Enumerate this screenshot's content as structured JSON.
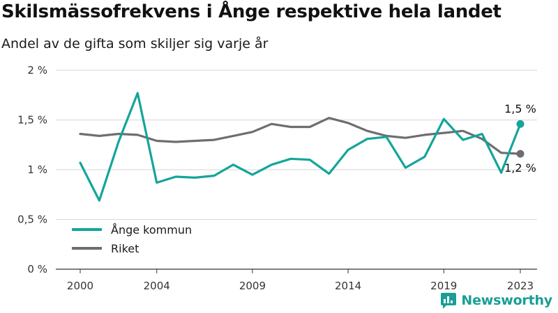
{
  "header": {
    "title": "Skilsmässofrekvens i Ånge respektive hela landet",
    "subtitle": "Andel av de gifta som skiljer sig varje år"
  },
  "brand": {
    "name": "Newsworthy",
    "logo_icon": "bar-chart-icon",
    "color": "#1a9e95"
  },
  "chart_data": {
    "type": "line",
    "x": [
      2000,
      2001,
      2002,
      2003,
      2004,
      2005,
      2006,
      2007,
      2008,
      2009,
      2010,
      2011,
      2012,
      2013,
      2014,
      2015,
      2016,
      2017,
      2018,
      2019,
      2020,
      2021,
      2022,
      2023
    ],
    "series": [
      {
        "name": "Ånge kommun",
        "color": "#13a59a",
        "values": [
          1.07,
          0.69,
          1.28,
          1.77,
          0.87,
          0.93,
          0.92,
          0.94,
          1.05,
          0.95,
          1.05,
          1.11,
          1.1,
          0.96,
          1.2,
          1.31,
          1.33,
          1.02,
          1.13,
          1.51,
          1.3,
          1.36,
          0.97,
          1.46
        ],
        "end_label": "1,5 %"
      },
      {
        "name": "Riket",
        "color": "#6e6d72",
        "values": [
          1.36,
          1.34,
          1.36,
          1.35,
          1.29,
          1.28,
          1.29,
          1.3,
          1.34,
          1.38,
          1.46,
          1.43,
          1.43,
          1.52,
          1.47,
          1.39,
          1.34,
          1.32,
          1.35,
          1.37,
          1.39,
          1.31,
          1.17,
          1.16
        ],
        "end_label": "1,2 %"
      }
    ],
    "ylim": [
      0,
      2
    ],
    "yticks": [
      0,
      0.5,
      1,
      1.5,
      2
    ],
    "ytick_labels": [
      "0 %",
      "0,5 %",
      "1 %",
      "1,5 %",
      "2 %"
    ],
    "xticks": [
      2000,
      2004,
      2009,
      2014,
      2019,
      2023
    ],
    "xtick_labels": [
      "2000",
      "2004",
      "2009",
      "2014",
      "2019",
      "2023"
    ],
    "xlabel": "",
    "ylabel": "",
    "grid": "horizontal",
    "legend": "bottom-left"
  }
}
